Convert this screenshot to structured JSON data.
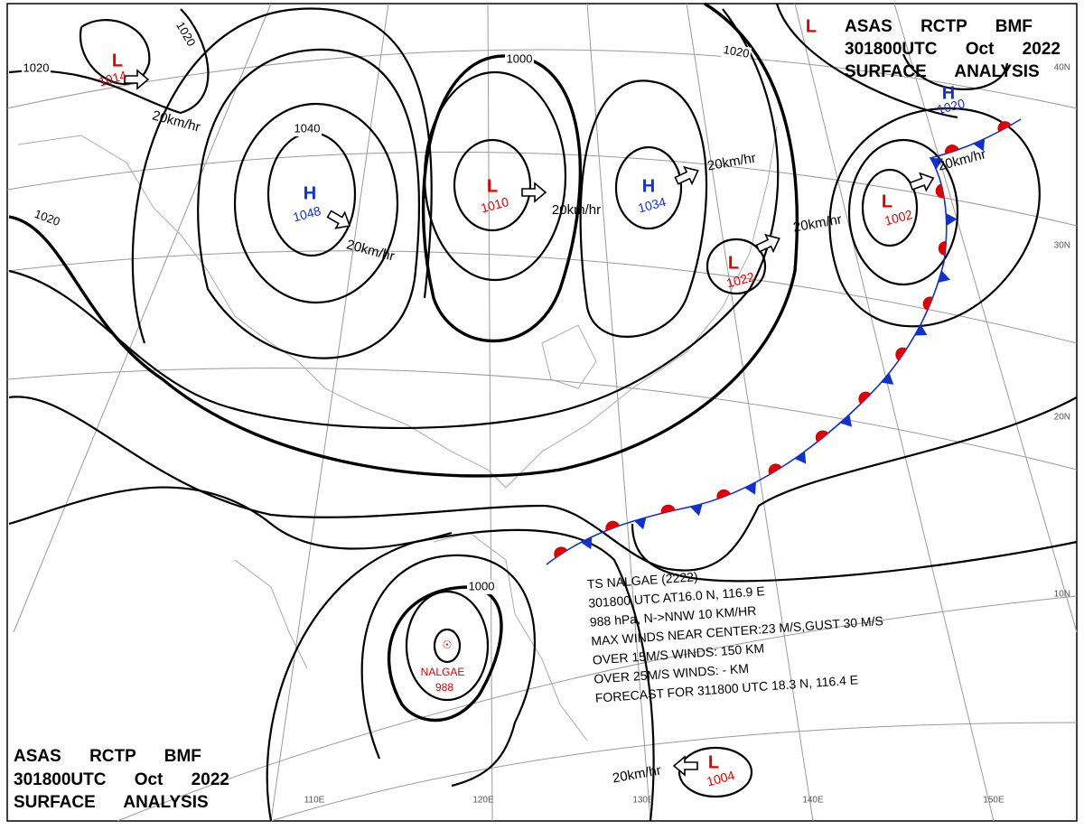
{
  "header_top": [
    "ASAS RCTP BMF",
    "301800UTC Oct 2022",
    "SURFACE ANALYSIS"
  ],
  "header_bottom": [
    "ASAS RCTP BMF",
    "301800UTC Oct 2022",
    "SURFACE ANALYSIS"
  ],
  "pressure_centers": [
    {
      "symbol": "L",
      "value": 1014,
      "color": "#e00000"
    },
    {
      "symbol": "H",
      "value": 1048,
      "color": "#1030d0"
    },
    {
      "symbol": "L",
      "value": 1010,
      "color": "#e00000"
    },
    {
      "symbol": "H",
      "value": 1034,
      "color": "#1030d0"
    },
    {
      "symbol": "L",
      "value": 1022,
      "color": "#e00000"
    },
    {
      "symbol": "L",
      "value": 1002,
      "color": "#e00000"
    },
    {
      "symbol": "H",
      "value": 1020,
      "color": "#1030d0"
    },
    {
      "symbol": "L",
      "value": 1004,
      "color": "#e00000"
    }
  ],
  "edge_center": {
    "symbol": "L",
    "color": "#e00000"
  },
  "storm_center": {
    "name": "NALGAE",
    "value": 988,
    "color": "#e00000"
  },
  "isobar_labels": [
    "1020",
    "1020",
    "1020",
    "1020",
    "1040",
    "1000",
    "1000"
  ],
  "wind_labels": [
    "20km/hr",
    "20km/hr",
    "20km/hr",
    "20km/hr",
    "20km/hr",
    "20km/hr",
    "20km/hr"
  ],
  "latitude_labels": [
    "40N",
    "30N",
    "20N",
    "10N"
  ],
  "longitude_labels": [
    "110E",
    "120E",
    "130E",
    "140E",
    "150E"
  ],
  "storm_info": [
    "TS NALGAE (2222)",
    "301800 UTC AT16.0 N, 116.9 E",
    "988 hPa, N->NNW 10 KM/HR",
    "MAX WINDS NEAR CENTER:23 M/S,GUST 30 M/S",
    "OVER 15M/S WINDS: 150 KM",
    "OVER 25M/S WINDS: - KM",
    "FORECAST FOR 311800 UTC 18.3 N, 116.4 E"
  ]
}
